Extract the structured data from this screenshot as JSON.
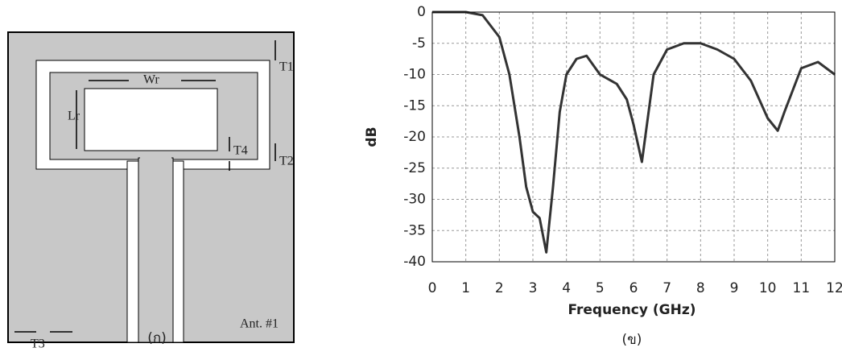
{
  "diagram": {
    "labels": [
      "Wr",
      "Lr",
      "T1",
      "T2",
      "T3",
      "T4",
      "Ant. #1"
    ],
    "caption": "(ก)"
  },
  "chart_data": {
    "type": "line",
    "caption": "(ข)",
    "x_label": "Frequency (GHz)",
    "y_label": "dB",
    "x": [
      0,
      0.5,
      1,
      1.5,
      2,
      2.3,
      2.6,
      2.8,
      3.0,
      3.2,
      3.4,
      3.6,
      3.8,
      4.0,
      4.3,
      4.6,
      5.0,
      5.5,
      5.8,
      6.0,
      6.25,
      6.4,
      6.6,
      7.0,
      7.5,
      8.0,
      8.5,
      9.0,
      9.5,
      10.0,
      10.3,
      10.5,
      11.0,
      11.5,
      12.0
    ],
    "values": [
      0,
      0,
      0,
      -0.5,
      -4,
      -10,
      -20,
      -28,
      -32,
      -33,
      -38.5,
      -28,
      -16,
      -10,
      -7.5,
      -7,
      -10,
      -11.5,
      -14,
      -18,
      -24,
      -18,
      -10,
      -6,
      -5,
      -5,
      -6,
      -7.5,
      -11,
      -17,
      -19,
      -16,
      -9,
      -8,
      -10
    ],
    "color": "#333333",
    "xlim": [
      0,
      12
    ],
    "xticks": [
      0,
      1,
      2,
      3,
      4,
      5,
      6,
      7,
      8,
      9,
      10,
      11,
      12
    ],
    "ylim": [
      -40,
      0
    ],
    "yticks": [
      -40,
      -35,
      -30,
      -25,
      -20,
      -15,
      -10,
      -5,
      0
    ],
    "grid": true
  }
}
